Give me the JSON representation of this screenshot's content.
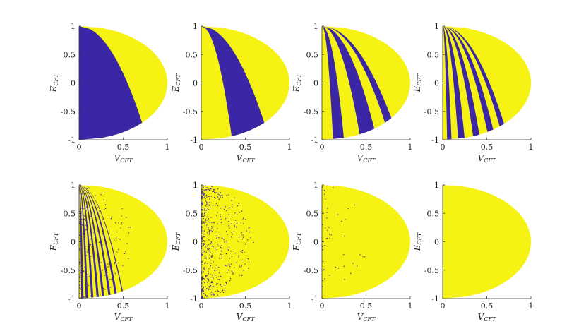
{
  "chart_data": {
    "type": "scatter",
    "grid": false,
    "colors": {
      "region_a": "#3b27a6",
      "region_b": "#f5f214",
      "frame": "#d9d9d9"
    },
    "xlabel": {
      "main": "V",
      "sub": "CFT"
    },
    "ylabel": {
      "main": "E",
      "sub": "CFT"
    },
    "xlim": [
      0,
      1
    ],
    "ylim": [
      -1,
      1
    ],
    "xticks": [
      {
        "value": 0,
        "label": "0"
      },
      {
        "value": 0.5,
        "label": "0.5"
      },
      {
        "value": 1,
        "label": "1"
      }
    ],
    "yticks": [
      {
        "value": 1,
        "label": "1"
      },
      {
        "value": 0.5,
        "label": "0.5"
      },
      {
        "value": 0,
        "label": "0"
      },
      {
        "value": -0.5,
        "label": "-0.5"
      },
      {
        "value": -1,
        "label": "-1"
      }
    ],
    "boundary": "semicircle V = sqrt(1 - E^2)",
    "panels": [
      {
        "position": "row 1, column 1",
        "bands": [
          0.62
        ],
        "noise": 0.0
      },
      {
        "position": "row 1, column 2",
        "bands": [
          0.28,
          0.62,
          0.78
        ],
        "noise": 0.0
      },
      {
        "position": "row 1, column 3",
        "bands": [
          0.1,
          0.2,
          0.35,
          0.5,
          0.62,
          0.7
        ],
        "noise": 0.0
      },
      {
        "position": "row 1, column 4",
        "bands": [
          0.04,
          0.08,
          0.14,
          0.2,
          0.28,
          0.34,
          0.42,
          0.48,
          0.55,
          0.6
        ],
        "noise": 0.0
      },
      {
        "position": "row 2, column 1",
        "bands": [
          0.02,
          0.04,
          0.06,
          0.08,
          0.11,
          0.13,
          0.16,
          0.18,
          0.21,
          0.23,
          0.27,
          0.29,
          0.33,
          0.35,
          0.4,
          0.41
        ],
        "noise": 0.2
      },
      {
        "position": "row 2, column 2",
        "bands": [],
        "noise": 0.6
      },
      {
        "position": "row 2, column 3",
        "bands": [],
        "noise": 0.05
      },
      {
        "position": "row 2, column 4",
        "bands": [],
        "noise": 0.0
      }
    ]
  }
}
